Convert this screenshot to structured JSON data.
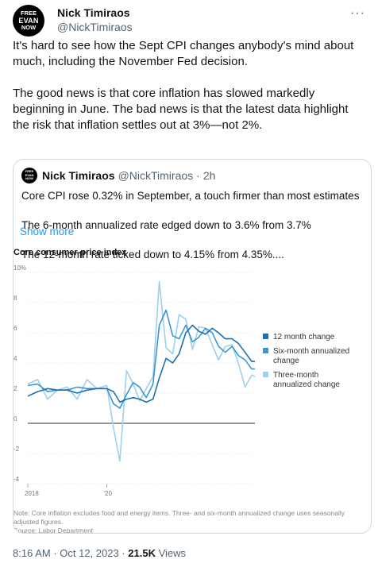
{
  "author": {
    "avatar_lines": [
      "FREE",
      "EVAN",
      "NOW"
    ],
    "name": "Nick Timiraos",
    "handle": "@NickTimiraos"
  },
  "more_icon": "more-horizontal-icon",
  "tweet": {
    "paragraph_1": "It's hard to see how the Sept CPI changes anybody's mind about much, including the November Fed decision.",
    "paragraph_2": "The good news is that core inflation has slowed markedly beginning in June. The bad news is that the latest data highlight the risk that inflation settles out at 3%—not 2%."
  },
  "quote": {
    "name": "Nick Timiraos",
    "handle": "@NickTimiraos",
    "separator": "·",
    "time": "2h",
    "line_1": "Core CPI rose 0.32% in September, a touch firmer than most estimates",
    "line_2": "The 6-month annualized rate edged down to 3.6% from 3.7%",
    "line_3": "The 12-month rate ticked down to 4.15% from 4.35%....",
    "show_more": "Show more"
  },
  "chart_title": "Core consumer-price index",
  "chart_note": {
    "line_1": "Note: Core inflation excludes food and energy items. Three- and six-month annualized change uses seasonally adjusted figures.",
    "line_2": "Source: Labor Department"
  },
  "chart_data": {
    "type": "line",
    "title": "Core consumer-price index",
    "ylim": [
      -4,
      10
    ],
    "y_ticks": [
      "10%",
      "8",
      "6",
      "4",
      "2",
      "0",
      "-2",
      "-4"
    ],
    "y_tick_values": [
      10,
      8,
      6,
      4,
      2,
      0,
      -2,
      -4
    ],
    "x_ticks": [
      "2018",
      "'20"
    ],
    "x_tick_values": [
      2018.0,
      2020.0
    ],
    "xlim": [
      2018.0,
      2023.75
    ],
    "legend_position": "right",
    "series": [
      {
        "name": "12 month change",
        "color": "#1f6eb0",
        "x": [
          2018.0,
          2018.25,
          2018.5,
          2018.75,
          2019.0,
          2019.25,
          2019.5,
          2019.75,
          2020.0,
          2020.17,
          2020.33,
          2020.5,
          2020.67,
          2020.83,
          2021.0,
          2021.17,
          2021.33,
          2021.5,
          2021.67,
          2021.83,
          2022.0,
          2022.17,
          2022.33,
          2022.5,
          2022.67,
          2022.83,
          2023.0,
          2023.17,
          2023.33,
          2023.5,
          2023.67,
          2023.75
        ],
        "values": [
          1.8,
          2.1,
          2.3,
          2.2,
          2.2,
          2.0,
          2.2,
          2.3,
          2.3,
          2.1,
          1.4,
          1.6,
          1.7,
          1.6,
          1.4,
          1.6,
          3.0,
          4.3,
          4.0,
          4.6,
          6.0,
          6.5,
          6.1,
          5.9,
          6.3,
          6.0,
          5.6,
          5.6,
          5.3,
          4.7,
          4.1,
          4.1
        ]
      },
      {
        "name": "Six-month annualized change",
        "color": "#3a97d4",
        "x": [
          2018.0,
          2018.25,
          2018.5,
          2018.75,
          2019.0,
          2019.25,
          2019.5,
          2019.75,
          2020.0,
          2020.17,
          2020.33,
          2020.5,
          2020.67,
          2020.83,
          2021.0,
          2021.17,
          2021.33,
          2021.5,
          2021.67,
          2021.83,
          2022.0,
          2022.17,
          2022.33,
          2022.5,
          2022.67,
          2022.83,
          2023.0,
          2023.17,
          2023.33,
          2023.5,
          2023.67,
          2023.75
        ],
        "values": [
          2.5,
          2.6,
          2.1,
          2.2,
          2.2,
          2.4,
          2.3,
          2.3,
          2.3,
          1.3,
          1.0,
          1.9,
          2.7,
          2.4,
          1.7,
          2.6,
          6.5,
          7.5,
          5.8,
          5.6,
          6.5,
          5.4,
          5.7,
          6.3,
          6.0,
          5.1,
          4.7,
          5.1,
          4.5,
          4.2,
          3.6,
          3.6
        ]
      },
      {
        "name": "Three-month annualized change",
        "color": "#9cd0ee",
        "x": [
          2018.0,
          2018.25,
          2018.5,
          2018.75,
          2019.0,
          2019.25,
          2019.5,
          2019.75,
          2020.0,
          2020.17,
          2020.33,
          2020.5,
          2020.67,
          2020.83,
          2021.0,
          2021.17,
          2021.33,
          2021.5,
          2021.67,
          2021.83,
          2022.0,
          2022.17,
          2022.33,
          2022.5,
          2022.67,
          2022.83,
          2023.0,
          2023.17,
          2023.33,
          2023.5,
          2023.67,
          2023.75
        ],
        "values": [
          2.6,
          2.9,
          1.6,
          2.2,
          2.4,
          1.6,
          2.9,
          2.3,
          2.5,
          -0.3,
          -2.5,
          3.5,
          2.6,
          1.5,
          2.3,
          3.1,
          9.4,
          5.0,
          4.6,
          7.2,
          6.9,
          4.9,
          6.4,
          6.3,
          5.2,
          4.2,
          5.1,
          5.2,
          4.0,
          2.4,
          3.2,
          3.1
        ]
      }
    ]
  },
  "footer": {
    "time": "8:16 AM · Oct 12, 2023 ·",
    "views_count": "21.5K",
    "views_label": "Views"
  }
}
